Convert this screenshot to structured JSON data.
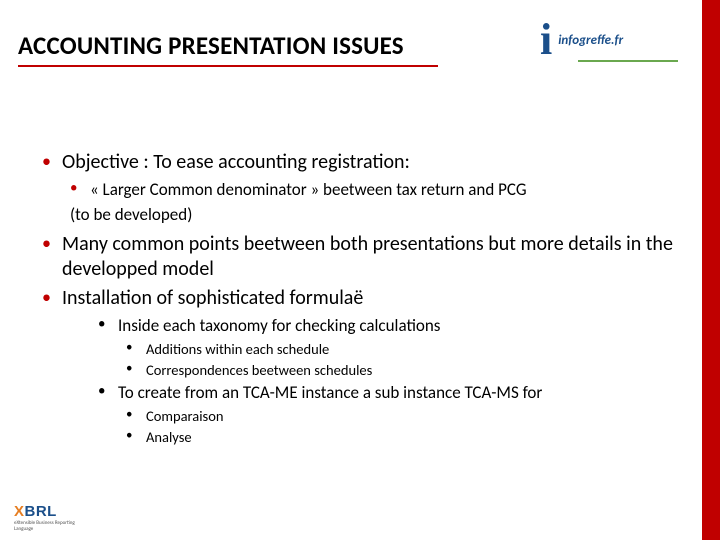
{
  "colors": {
    "accent_red": "#c00000",
    "bullet_l1": "#c00000",
    "bullet_l2": "#c00000",
    "bullet_l3": "#000000",
    "bullet_l4": "#000000",
    "title_color": "#000000",
    "logo_blue": "#1b4f8a",
    "logo_green": "#6aa84f",
    "xbrl_orange": "#e67e22"
  },
  "title": "ACCOUNTING PRESENTATION ISSUES",
  "header_logo": {
    "text": "infogreffe.fr"
  },
  "bullets": [
    {
      "level": 1,
      "text": "Objective : To ease accounting registration:"
    },
    {
      "level": 2,
      "text": " « Larger Common denominator » beetween tax return and PCG"
    },
    {
      "level": 2,
      "continue": true,
      "text": "(to be developed)"
    },
    {
      "level": 1,
      "text": "Many common points beetween both presentations  but more details in the developped model"
    },
    {
      "level": 1,
      "text": "Installation of sophisticated formulaë"
    },
    {
      "level": 3,
      "text": "Inside each taxonomy for checking calculations"
    },
    {
      "level": 4,
      "text": "Additions within each schedule"
    },
    {
      "level": 4,
      "text": "Correspondences beetween schedules"
    },
    {
      "level": 3,
      "text": "To create from an TCA-ME instance a sub instance TCA-MS for"
    },
    {
      "level": 4,
      "text": "Comparaison"
    },
    {
      "level": 4,
      "text": "Analyse"
    }
  ],
  "footer_logo": {
    "main": "XBRL",
    "sub": "eXtensible Business Reporting Language"
  }
}
